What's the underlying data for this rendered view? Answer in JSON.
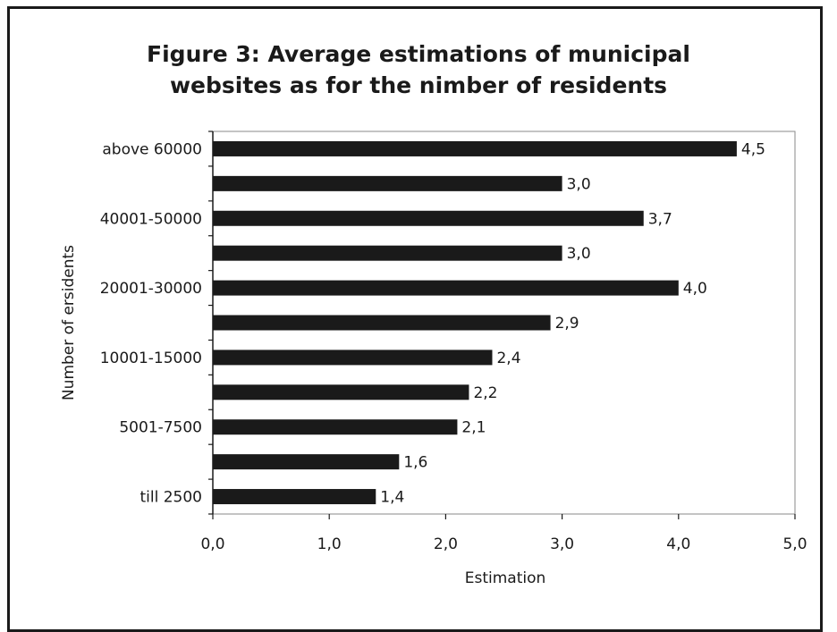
{
  "chart_data": {
    "type": "bar",
    "orientation": "horizontal",
    "title_line1": "Figure 3: Average estimations of municipal",
    "title_line2": "websites as for the nimber of residents",
    "xlabel": "Estimation",
    "ylabel": "Number of ersidents",
    "xlim": [
      0,
      5
    ],
    "xticks": [
      "0,0",
      "1,0",
      "2,0",
      "3,0",
      "4,0",
      "5,0"
    ],
    "categories": [
      "above 60000",
      "",
      "40001-50000",
      "",
      "20001-30000",
      "",
      "10001-15000",
      "",
      "5001-7500",
      "",
      "till 2500"
    ],
    "values": [
      4.5,
      3.0,
      3.7,
      3.0,
      4.0,
      2.9,
      2.4,
      2.2,
      2.1,
      1.6,
      1.4
    ],
    "value_labels": [
      "4,5",
      "3,0",
      "3,7",
      "3,0",
      "4,0",
      "2,9",
      "2,4",
      "2,2",
      "2,1",
      "1,6",
      "1,4"
    ],
    "grid": false,
    "bar_color": "#1a1a1a"
  }
}
